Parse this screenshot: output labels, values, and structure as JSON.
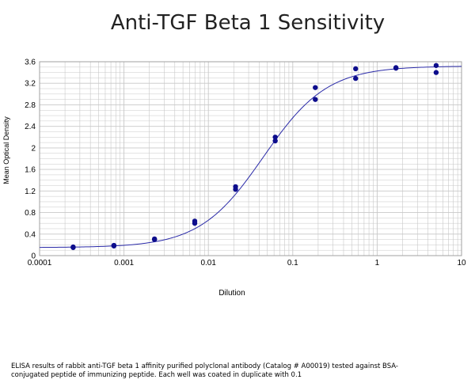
{
  "chart_data": {
    "type": "scatter",
    "title": "Anti-TGF Beta 1 Sensitivity",
    "xlabel": "Dilution",
    "ylabel": "Mean Optical Density",
    "xscale": "log",
    "xlim": [
      0.0001,
      10
    ],
    "ylim": [
      0,
      3.6
    ],
    "x_ticks": [
      "0.0001",
      "0.001",
      "0.01",
      "0.1",
      "1",
      "10"
    ],
    "y_ticks": [
      "0",
      "0.4",
      "0.8",
      "1.2",
      "1.6",
      "2",
      "2.4",
      "2.8",
      "3.2",
      "3.6"
    ],
    "grid": true,
    "legend": "none",
    "points": [
      {
        "x": 0.00025,
        "y": 0.16
      },
      {
        "x": 0.00025,
        "y": 0.15
      },
      {
        "x": 0.00076,
        "y": 0.19
      },
      {
        "x": 0.00076,
        "y": 0.18
      },
      {
        "x": 0.0023,
        "y": 0.31
      },
      {
        "x": 0.0023,
        "y": 0.3
      },
      {
        "x": 0.0069,
        "y": 0.64
      },
      {
        "x": 0.0069,
        "y": 0.6
      },
      {
        "x": 0.021,
        "y": 1.28
      },
      {
        "x": 0.021,
        "y": 1.23
      },
      {
        "x": 0.062,
        "y": 2.2
      },
      {
        "x": 0.062,
        "y": 2.13
      },
      {
        "x": 0.185,
        "y": 3.12
      },
      {
        "x": 0.185,
        "y": 2.9
      },
      {
        "x": 0.556,
        "y": 3.47
      },
      {
        "x": 0.556,
        "y": 3.29
      },
      {
        "x": 1.67,
        "y": 3.49
      },
      {
        "x": 1.67,
        "y": 3.48
      },
      {
        "x": 5.0,
        "y": 3.53
      },
      {
        "x": 5.0,
        "y": 3.4
      }
    ],
    "fit_curve": {
      "type": "4PL",
      "bottom": 0.15,
      "top": 3.52,
      "ec50": 0.045,
      "hill": 1.15
    },
    "colors": {
      "points": "#0d0d8c",
      "curve": "#2a2aa8",
      "grid": "#c8c8c8",
      "frame": "#a0a0a0"
    }
  },
  "caption": {
    "line1": "ELISA results of rabbit anti-TGF beta 1 affinity purified polyclonal antibody (Catalog # A00019) tested against BSA-",
    "line2": "conjugated peptide of immunizing peptide. Each well was coated in duplicate with 0.1"
  }
}
